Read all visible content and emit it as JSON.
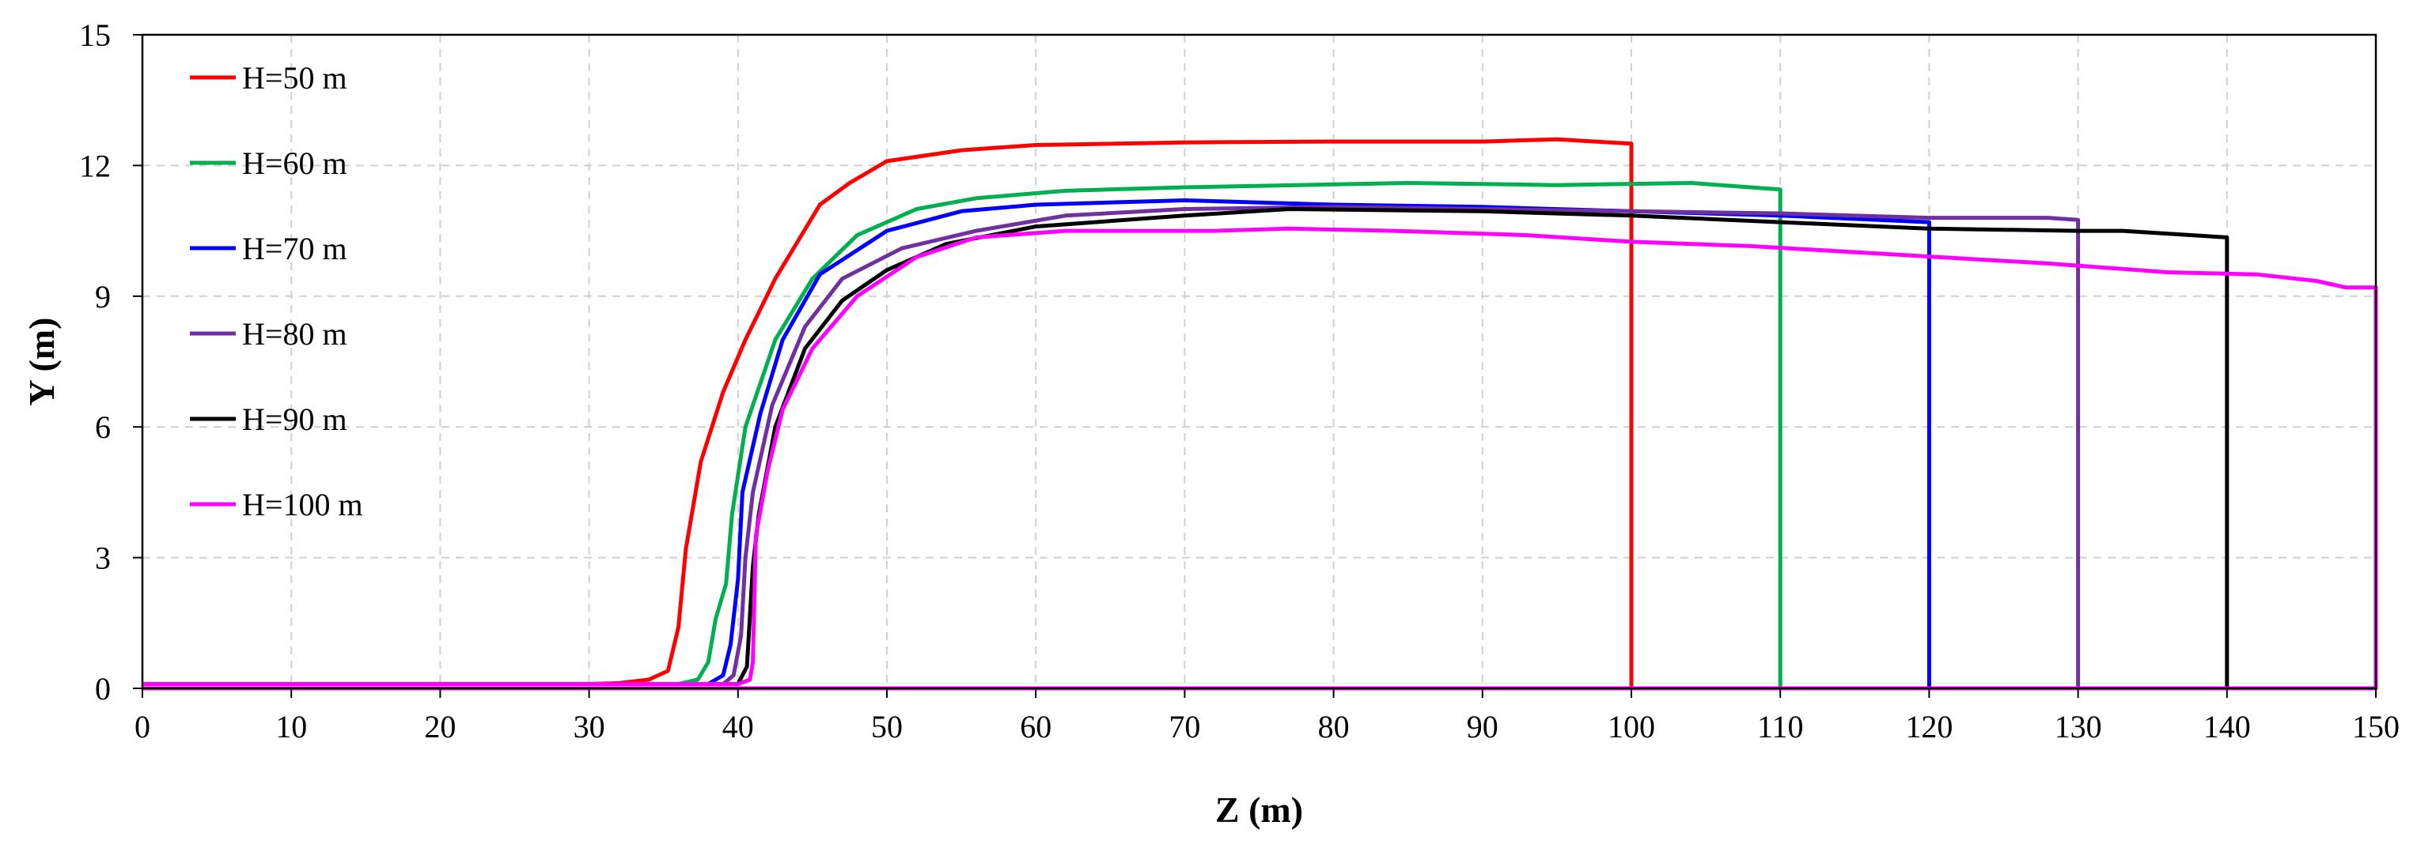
{
  "chart_data": {
    "type": "line",
    "title": "",
    "xlabel": "Z (m)",
    "ylabel": "Y (m)",
    "xlim": [
      0,
      150
    ],
    "ylim": [
      0,
      15
    ],
    "xticks": [
      0,
      10,
      20,
      30,
      40,
      50,
      60,
      70,
      80,
      90,
      100,
      110,
      120,
      130,
      140,
      150
    ],
    "yticks": [
      0,
      3,
      6,
      9,
      12,
      15
    ],
    "grid": true,
    "legend_position": "top-left",
    "series": [
      {
        "name": "H=50 m",
        "color": "#ff0000",
        "points": [
          [
            0,
            0.1
          ],
          [
            30,
            0.1
          ],
          [
            32,
            0.12
          ],
          [
            34,
            0.2
          ],
          [
            35.3,
            0.4
          ],
          [
            36,
            1.4
          ],
          [
            36.5,
            3.2
          ],
          [
            37.5,
            5.2
          ],
          [
            39,
            6.8
          ],
          [
            40.5,
            8
          ],
          [
            42.5,
            9.4
          ],
          [
            45.5,
            11.1
          ],
          [
            47.5,
            11.6
          ],
          [
            50,
            12.1
          ],
          [
            55,
            12.35
          ],
          [
            60,
            12.47
          ],
          [
            70,
            12.53
          ],
          [
            80,
            12.55
          ],
          [
            90,
            12.55
          ],
          [
            95,
            12.6
          ],
          [
            100,
            12.5
          ],
          [
            100,
            0
          ],
          [
            0,
            0
          ]
        ]
      },
      {
        "name": "H=60 m",
        "color": "#00b050",
        "points": [
          [
            0,
            0.1
          ],
          [
            36,
            0.1
          ],
          [
            37.3,
            0.2
          ],
          [
            38,
            0.6
          ],
          [
            38.5,
            1.6
          ],
          [
            39.2,
            2.4
          ],
          [
            39.6,
            4
          ],
          [
            40.5,
            6
          ],
          [
            42.5,
            8
          ],
          [
            45,
            9.4
          ],
          [
            48,
            10.4
          ],
          [
            52,
            11
          ],
          [
            56,
            11.25
          ],
          [
            62,
            11.42
          ],
          [
            70,
            11.5
          ],
          [
            85,
            11.6
          ],
          [
            95,
            11.55
          ],
          [
            104,
            11.6
          ],
          [
            110,
            11.45
          ],
          [
            110,
            0
          ],
          [
            0,
            0
          ]
        ]
      },
      {
        "name": "H=70 m",
        "color": "#0000ff",
        "points": [
          [
            0,
            0.1
          ],
          [
            38,
            0.1
          ],
          [
            39,
            0.3
          ],
          [
            39.5,
            1
          ],
          [
            40,
            2.5
          ],
          [
            40.3,
            4.5
          ],
          [
            41.5,
            6.3
          ],
          [
            43,
            8
          ],
          [
            45.5,
            9.5
          ],
          [
            50,
            10.5
          ],
          [
            55,
            10.95
          ],
          [
            60,
            11.1
          ],
          [
            70,
            11.2
          ],
          [
            80,
            11.1
          ],
          [
            90,
            11.05
          ],
          [
            100,
            10.95
          ],
          [
            110,
            10.85
          ],
          [
            120,
            10.7
          ],
          [
            120,
            0
          ],
          [
            0,
            0
          ]
        ]
      },
      {
        "name": "H=80 m",
        "color": "#7030a0",
        "points": [
          [
            0,
            0.1
          ],
          [
            39,
            0.1
          ],
          [
            39.7,
            0.3
          ],
          [
            40.2,
            1.2
          ],
          [
            40.5,
            3
          ],
          [
            41,
            4.5
          ],
          [
            42.3,
            6.5
          ],
          [
            44.5,
            8.3
          ],
          [
            47,
            9.4
          ],
          [
            51,
            10.1
          ],
          [
            56,
            10.5
          ],
          [
            62,
            10.85
          ],
          [
            70,
            11
          ],
          [
            80,
            11.05
          ],
          [
            90,
            11
          ],
          [
            100,
            10.95
          ],
          [
            110,
            10.9
          ],
          [
            120,
            10.8
          ],
          [
            128,
            10.8
          ],
          [
            130,
            10.75
          ],
          [
            130,
            0
          ],
          [
            0,
            0
          ]
        ]
      },
      {
        "name": "H=90 m",
        "color": "#000000",
        "points": [
          [
            0,
            0.1
          ],
          [
            40,
            0.1
          ],
          [
            40.6,
            0.5
          ],
          [
            41,
            2.8
          ],
          [
            41.4,
            4
          ],
          [
            42.5,
            6
          ],
          [
            44.5,
            7.8
          ],
          [
            47,
            8.9
          ],
          [
            50,
            9.6
          ],
          [
            54,
            10.2
          ],
          [
            60,
            10.6
          ],
          [
            70,
            10.85
          ],
          [
            77,
            11
          ],
          [
            90,
            10.95
          ],
          [
            100,
            10.85
          ],
          [
            110,
            10.7
          ],
          [
            120,
            10.55
          ],
          [
            130,
            10.5
          ],
          [
            133,
            10.5
          ],
          [
            140,
            10.35
          ],
          [
            140,
            0
          ],
          [
            0,
            0
          ]
        ]
      },
      {
        "name": "H=100 m",
        "color": "#ff00ff",
        "points": [
          [
            0,
            0.1
          ],
          [
            40,
            0.1
          ],
          [
            40.8,
            0.2
          ],
          [
            41,
            0.6
          ],
          [
            41.2,
            3.5
          ],
          [
            42,
            5
          ],
          [
            43,
            6.4
          ],
          [
            45,
            7.8
          ],
          [
            48,
            9
          ],
          [
            52,
            9.9
          ],
          [
            56,
            10.35
          ],
          [
            62,
            10.5
          ],
          [
            72,
            10.5
          ],
          [
            77,
            10.55
          ],
          [
            84,
            10.5
          ],
          [
            93,
            10.4
          ],
          [
            100,
            10.25
          ],
          [
            108,
            10.15
          ],
          [
            118,
            9.95
          ],
          [
            128,
            9.75
          ],
          [
            136,
            9.55
          ],
          [
            142,
            9.5
          ],
          [
            146,
            9.35
          ],
          [
            148,
            9.2
          ],
          [
            150,
            9.2
          ],
          [
            150,
            0
          ],
          [
            0,
            0
          ]
        ]
      }
    ]
  }
}
